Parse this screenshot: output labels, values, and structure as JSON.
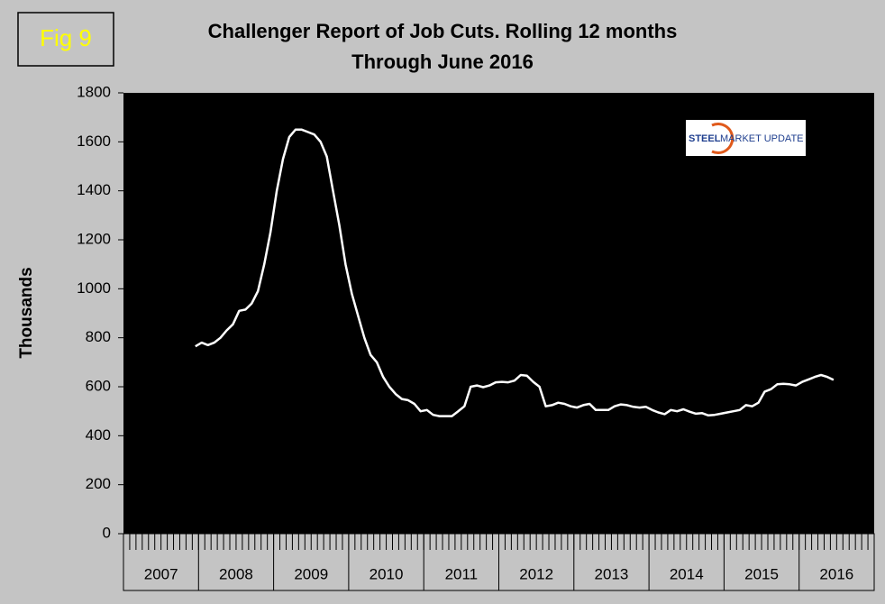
{
  "figure_label": "Fig 9",
  "logo": {
    "word1": "STEEL",
    "word2": "MARKET UPDATE"
  },
  "chart_data": {
    "type": "line",
    "title": "Challenger Report of Job Cuts. Rolling 12 months",
    "subtitle": "Through June 2016",
    "y_label": "Thousands",
    "categories": [
      "2007",
      null,
      null,
      null,
      null,
      null,
      null,
      null,
      null,
      null,
      null,
      null,
      "2008",
      null,
      null,
      null,
      null,
      null,
      null,
      null,
      null,
      null,
      null,
      null,
      "2009",
      null,
      null,
      null,
      null,
      null,
      null,
      null,
      null,
      null,
      null,
      null,
      "2010",
      null,
      null,
      null,
      null,
      null,
      null,
      null,
      null,
      null,
      null,
      null,
      "2011",
      null,
      null,
      null,
      null,
      null,
      null,
      null,
      null,
      null,
      null,
      null,
      "2012",
      null,
      null,
      null,
      null,
      null,
      null,
      null,
      null,
      null,
      null,
      null,
      "2013",
      null,
      null,
      null,
      null,
      null,
      null,
      null,
      null,
      null,
      null,
      null,
      "2014",
      null,
      null,
      null,
      null,
      null,
      null,
      null,
      null,
      null,
      null,
      null,
      "2015",
      null,
      null,
      null,
      null,
      null,
      null,
      null,
      null,
      null,
      null,
      null,
      "2016",
      null,
      null,
      null,
      null,
      null,
      null,
      null,
      null,
      null,
      null,
      null
    ],
    "color": "#ffffff",
    "values": [
      null,
      null,
      null,
      null,
      null,
      null,
      null,
      null,
      null,
      null,
      null,
      765,
      780,
      770,
      780,
      800,
      830,
      855,
      910,
      915,
      940,
      990,
      1100,
      1230,
      1400,
      1530,
      1620,
      1650,
      1650,
      1640,
      1630,
      1600,
      1540,
      1400,
      1260,
      1100,
      980,
      890,
      800,
      730,
      700,
      640,
      600,
      570,
      550,
      545,
      530,
      500,
      505,
      485,
      480,
      480,
      480,
      500,
      520,
      600,
      605,
      598,
      605,
      618,
      620,
      618,
      625,
      648,
      645,
      620,
      600,
      520,
      525,
      535,
      530,
      520,
      515,
      525,
      530,
      505,
      505,
      505,
      520,
      528,
      525,
      518,
      515,
      518,
      505,
      495,
      488,
      505,
      500,
      508,
      498,
      490,
      492,
      483,
      485,
      490,
      495,
      500,
      505,
      525,
      520,
      535,
      580,
      590,
      610,
      612,
      610,
      605,
      620,
      630,
      640,
      648,
      640,
      628,
      null,
      null,
      null,
      null,
      null,
      null
    ],
    "ylim": [
      0,
      1800
    ],
    "yticks": [
      0,
      200,
      400,
      600,
      800,
      1000,
      1200,
      1400,
      1600,
      1800
    ]
  }
}
